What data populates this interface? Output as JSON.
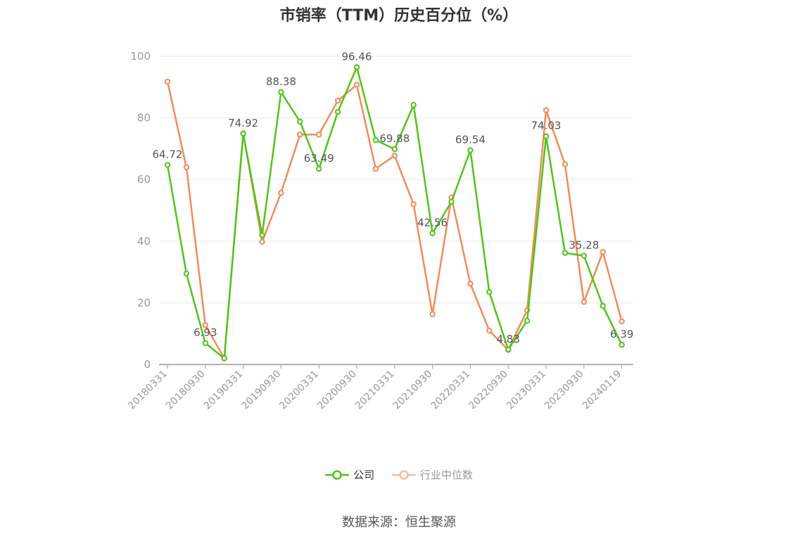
{
  "chart_data": {
    "type": "line",
    "title": "市销率（TTM）历史百分位（%）",
    "ylim": [
      0,
      100
    ],
    "yticks": [
      0,
      20,
      40,
      60,
      80,
      100
    ],
    "xticks": [
      "20180331",
      "20180930",
      "20190331",
      "20190930",
      "20200331",
      "20200930",
      "20210331",
      "20210930",
      "20220331",
      "20220930",
      "20230331",
      "20230930",
      "20240119"
    ],
    "grid": true,
    "legend_position": "bottom",
    "series": [
      {
        "name": "公司",
        "color": "#52c41a",
        "values": [
          64.72,
          29.5,
          6.93,
          2.0,
          74.92,
          42.0,
          88.38,
          78.8,
          63.49,
          82.0,
          96.46,
          72.8,
          69.88,
          84.2,
          42.56,
          52.8,
          69.54,
          23.5,
          4.83,
          14.2,
          74.03,
          36.2,
          35.28,
          19.0,
          6.39
        ],
        "labels": {
          "0": "64.72",
          "2": "6.93",
          "4": "74.92",
          "6": "88.38",
          "8": "63.49",
          "10": "96.46",
          "12": "69.88",
          "14": "42.56",
          "16": "69.54",
          "18": "4.83",
          "20": "74.03",
          "22": "35.28",
          "24": "6.39"
        }
      },
      {
        "name": "行业中位数",
        "color": "#f08c5a",
        "values": [
          91.8,
          64.0,
          12.8,
          2.0,
          75.0,
          39.8,
          55.7,
          74.6,
          74.6,
          85.6,
          90.8,
          63.5,
          67.8,
          52.0,
          16.3,
          54.2,
          26.2,
          11.0,
          4.7,
          17.6,
          82.5,
          65.0,
          20.3,
          36.5,
          14.0
        ]
      }
    ]
  },
  "source": "数据来源：恒生聚源"
}
